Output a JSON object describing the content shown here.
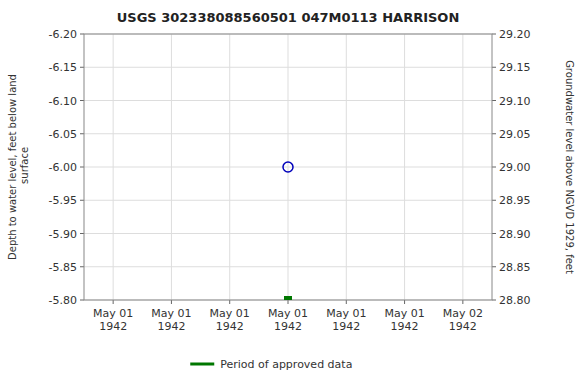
{
  "chart_data": {
    "type": "scatter",
    "title": "USGS 302338088560501 047M0113  HARRISON",
    "y_label": "Depth to water level, feet below land\n surface",
    "y2_label": "Groundwater level above NGVD 1929, feet",
    "categories": [
      "May 01\n1942",
      "May 01\n1942",
      "May 01\n1942",
      "May 01\n1942",
      "May 01\n1942",
      "May 01\n1942",
      "May 02\n1942"
    ],
    "series": [
      {
        "values": [
          null,
          null,
          null,
          -6.0,
          null,
          null,
          null
        ],
        "color": "#0000bb",
        "marker": "circle"
      },
      {
        "name": "Period of approved data",
        "values": [
          null,
          null,
          null,
          -5.8,
          null,
          null,
          null
        ],
        "color": "#007700",
        "marker": "square"
      }
    ],
    "ylim": [
      -5.8,
      -6.2
    ],
    "yticks": [
      {
        "value": -6.2,
        "label": "-6.20"
      },
      {
        "value": -6.15,
        "label": "-6.15"
      },
      {
        "value": -6.1,
        "label": "-6.10"
      },
      {
        "value": -6.05,
        "label": "-6.05"
      },
      {
        "value": -6.0,
        "label": "-6.00"
      },
      {
        "value": -5.95,
        "label": "-5.95"
      },
      {
        "value": -5.9,
        "label": "-5.90"
      },
      {
        "value": -5.85,
        "label": "-5.85"
      },
      {
        "value": -5.8,
        "label": "-5.80"
      }
    ],
    "y2lim": [
      28.8,
      29.2
    ],
    "y2ticks": [
      {
        "value": 28.8,
        "label": "28.80"
      },
      {
        "value": 28.85,
        "label": "28.85"
      },
      {
        "value": 28.9,
        "label": "28.90"
      },
      {
        "value": 28.95,
        "label": "28.95"
      },
      {
        "value": 29.0,
        "label": "29.00"
      },
      {
        "value": 29.05,
        "label": "29.05"
      },
      {
        "value": 29.1,
        "label": "29.10"
      },
      {
        "value": 29.15,
        "label": "29.15"
      },
      {
        "value": 29.2,
        "label": "29.20"
      }
    ],
    "grid": true,
    "legend": "bottom"
  }
}
